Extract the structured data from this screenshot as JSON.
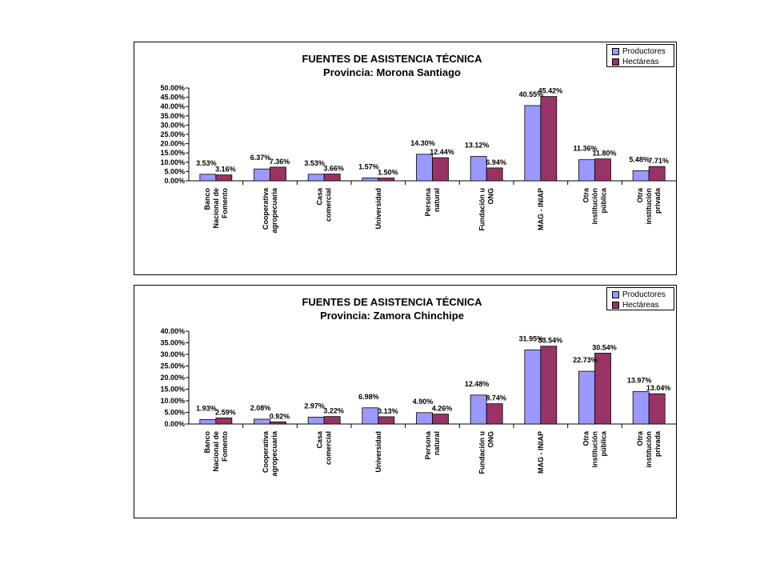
{
  "colors": {
    "productores": "#9999ff",
    "hectareas": "#993366",
    "axis": "#000000"
  },
  "chart_data": [
    {
      "type": "bar",
      "title": "FUENTES DE ASISTENCIA TÉCNICA",
      "subtitle": "Provincia: Morona Santiago",
      "categories": [
        [
          "Banco",
          "Nacional de",
          "Fomento"
        ],
        [
          "Cooperativa",
          "agropecuaria"
        ],
        [
          "Casa",
          "comercial"
        ],
        [
          "Universidad"
        ],
        [
          "Persona",
          "natural"
        ],
        [
          "Fundación u",
          "ONG"
        ],
        [
          "MAG - INIAP"
        ],
        [
          "Otra",
          "institución",
          "pública"
        ],
        [
          "Otra",
          "institución",
          "privada"
        ]
      ],
      "series": [
        {
          "name": "Productores",
          "values": [
            3.53,
            6.37,
            3.53,
            1.57,
            14.3,
            13.12,
            40.55,
            11.36,
            5.48
          ],
          "labels": [
            "3.53%",
            "6.37%",
            "3.53%",
            "1.57%",
            "14.30%",
            "13.12%",
            "40.55%",
            "11.36%",
            "5.48%"
          ]
        },
        {
          "name": "Hectáreas",
          "values": [
            3.16,
            7.36,
            3.66,
            1.5,
            12.44,
            6.94,
            45.42,
            11.8,
            7.71
          ],
          "labels": [
            "3.16%",
            "7.36%",
            "3.66%",
            "1.50%",
            "12.44%",
            "6.94%",
            "45.42%",
            "11.80%",
            "7.71%"
          ]
        }
      ],
      "ylim": [
        0,
        50
      ],
      "yticks": [
        "0.00%",
        "5.00%",
        "10.00%",
        "15.00%",
        "20.00%",
        "25.00%",
        "30.00%",
        "35.00%",
        "40.00%",
        "45.00%",
        "50.00%"
      ],
      "legend": "top-right",
      "grid": false
    },
    {
      "type": "bar",
      "title": "FUENTES DE ASISTENCIA TÉCNICA",
      "subtitle": "Provincia: Zamora Chinchipe",
      "categories": [
        [
          "Banco",
          "Nacional de",
          "Fomento"
        ],
        [
          "Cooperativa",
          "agropecuaria"
        ],
        [
          "Casa",
          "comercial"
        ],
        [
          "Universidad"
        ],
        [
          "Persona",
          "natural"
        ],
        [
          "Fundación u",
          "ONG"
        ],
        [
          "MAG - INIAP"
        ],
        [
          "Otra",
          "institución",
          "pública"
        ],
        [
          "Otra",
          "institución",
          "privada"
        ]
      ],
      "series": [
        {
          "name": "Productores",
          "values": [
            1.93,
            2.08,
            2.97,
            6.98,
            4.9,
            12.48,
            31.95,
            22.73,
            13.97
          ],
          "labels": [
            "1.93%",
            "2.08%",
            "2.97%",
            "6.98%",
            "4.90%",
            "12.48%",
            "31.95%",
            "22.73%",
            "13.97%"
          ]
        },
        {
          "name": "Hectáreas",
          "values": [
            2.59,
            0.92,
            3.22,
            3.13,
            4.26,
            8.74,
            33.54,
            30.54,
            13.04
          ],
          "labels": [
            "2.59%",
            "0.92%",
            "3.22%",
            "3.13%",
            "4.26%",
            "8.74%",
            "33.54%",
            "30.54%",
            "13.04%"
          ]
        }
      ],
      "ylim": [
        0,
        40
      ],
      "yticks": [
        "0.00%",
        "5.00%",
        "10.00%",
        "15.00%",
        "20.00%",
        "25.00%",
        "30.00%",
        "35.00%",
        "40.00%"
      ],
      "legend": "top-right",
      "grid": false
    }
  ]
}
